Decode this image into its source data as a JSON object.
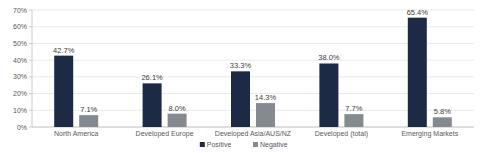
{
  "chart_data": {
    "type": "bar",
    "categories": [
      "North America",
      "Developed Europe",
      "Developed Asia/AUS/NZ",
      "Developed (total)",
      "Emerging Markets"
    ],
    "series": [
      {
        "name": "Positive",
        "color": "#1c2a45",
        "values": [
          42.7,
          26.1,
          33.3,
          38.0,
          65.4
        ],
        "value_labels": [
          "42.7%",
          "26.1%",
          "33.3%",
          "38.0%",
          "65.4%"
        ]
      },
      {
        "name": "Negative",
        "color": "#858a90",
        "values": [
          7.1,
          8.0,
          14.3,
          7.7,
          5.8
        ],
        "value_labels": [
          "7.1%",
          "8.0%",
          "14.3%",
          "7.7%",
          "5.8%"
        ]
      }
    ],
    "ylim": [
      0,
      70
    ],
    "yticks": [
      {
        "value": 0,
        "label": "0%"
      },
      {
        "value": 10,
        "label": "10%"
      },
      {
        "value": 20,
        "label": "20%"
      },
      {
        "value": 30,
        "label": "30%"
      },
      {
        "value": 40,
        "label": "40%"
      },
      {
        "value": 50,
        "label": "50%"
      },
      {
        "value": 60,
        "label": "60%"
      },
      {
        "value": 70,
        "label": "70%"
      }
    ],
    "grid": true,
    "data_labels": true,
    "legend": "bottom"
  }
}
